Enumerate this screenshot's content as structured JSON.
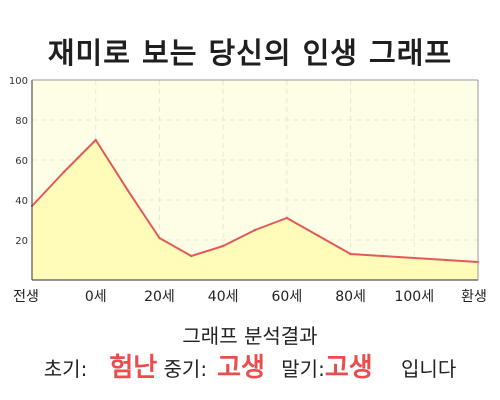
{
  "title": "재미로 보는 당신의 인생 그래프",
  "colors": {
    "line": "#e05a5a",
    "fill": "#fffbb8",
    "plot_bg": "#fefee6",
    "grid": "#e9e9d2",
    "accent": "#ea4d4d"
  },
  "chart_data": {
    "type": "area",
    "categories": [
      "전생",
      "",
      "0세",
      "",
      "20세",
      "",
      "40세",
      "",
      "60세",
      "",
      "80세",
      "",
      "100세",
      "",
      "환생"
    ],
    "values": [
      37,
      54,
      70,
      45,
      21,
      12,
      17,
      25,
      31,
      22,
      13,
      12,
      11,
      10,
      9
    ],
    "y_ticks": [
      "20",
      "40",
      "60",
      "80",
      "100"
    ],
    "ylim": [
      0,
      100
    ],
    "grid": true,
    "legend": "none"
  },
  "result": {
    "heading": "그래프 분석결과",
    "early_label": "초기:",
    "early_value": "험난",
    "middle_label": "중기:",
    "middle_value": "고생",
    "late_label": "말기:",
    "late_value": "고생",
    "ending": "입니다"
  }
}
